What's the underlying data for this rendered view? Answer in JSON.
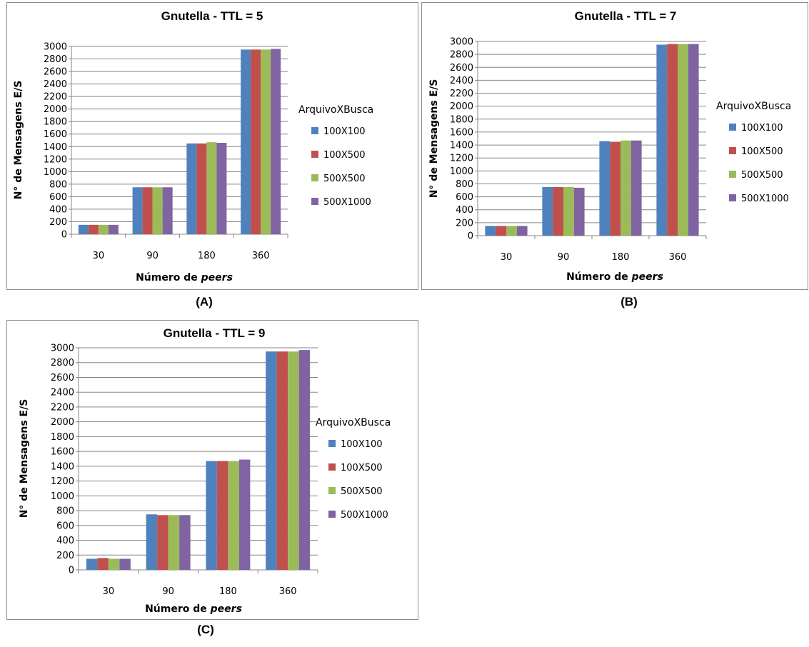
{
  "chart_data": [
    {
      "type": "bar",
      "title": "Gnutella - TTL = 5",
      "xlabel_prefix": "Número de ",
      "xlabel_emphasis": "peers",
      "ylabel": "N° de Mensagens E/S",
      "ylim": [
        0,
        3000
      ],
      "ytick_step": 200,
      "categories": [
        "30",
        "90",
        "180",
        "360"
      ],
      "legend_title": "ArquivoXBusca",
      "legend_position": "right",
      "grid": true,
      "series": [
        {
          "name": "100X100",
          "color": "#4f81bd",
          "values": [
            150,
            750,
            1450,
            2950
          ]
        },
        {
          "name": "100X500",
          "color": "#c0504d",
          "values": [
            150,
            750,
            1450,
            2950
          ]
        },
        {
          "name": "500X500",
          "color": "#9bbb59",
          "values": [
            150,
            750,
            1470,
            2950
          ]
        },
        {
          "name": "500X1000",
          "color": "#8064a2",
          "values": [
            150,
            750,
            1460,
            2960
          ]
        }
      ],
      "caption": "(A)"
    },
    {
      "type": "bar",
      "title": "Gnutella - TTL = 7",
      "xlabel_prefix": "Número de ",
      "xlabel_emphasis": "peers",
      "ylabel": "N° de Mensagens E/S",
      "ylim": [
        0,
        3000
      ],
      "ytick_step": 200,
      "categories": [
        "30",
        "90",
        "180",
        "360"
      ],
      "legend_title": "ArquivoXBusca",
      "legend_position": "right",
      "grid": true,
      "series": [
        {
          "name": "100X100",
          "color": "#4f81bd",
          "values": [
            150,
            750,
            1460,
            2950
          ]
        },
        {
          "name": "100X500",
          "color": "#c0504d",
          "values": [
            150,
            750,
            1450,
            2960
          ]
        },
        {
          "name": "500X500",
          "color": "#9bbb59",
          "values": [
            150,
            750,
            1470,
            2960
          ]
        },
        {
          "name": "500X1000",
          "color": "#8064a2",
          "values": [
            150,
            740,
            1470,
            2960
          ]
        }
      ],
      "caption": "(B)"
    },
    {
      "type": "bar",
      "title": "Gnutella - TTL = 9",
      "xlabel_prefix": "Número de ",
      "xlabel_emphasis": "peers",
      "ylabel": "N° de Mensagens E/S",
      "ylim": [
        0,
        3000
      ],
      "ytick_step": 200,
      "categories": [
        "30",
        "90",
        "180",
        "360"
      ],
      "legend_title": "ArquivoXBusca",
      "legend_position": "right",
      "grid": true,
      "series": [
        {
          "name": "100X100",
          "color": "#4f81bd",
          "values": [
            150,
            750,
            1470,
            2950
          ]
        },
        {
          "name": "100X500",
          "color": "#c0504d",
          "values": [
            160,
            740,
            1470,
            2950
          ]
        },
        {
          "name": "500X500",
          "color": "#9bbb59",
          "values": [
            150,
            740,
            1470,
            2950
          ]
        },
        {
          "name": "500X1000",
          "color": "#8064a2",
          "values": [
            150,
            740,
            1490,
            2970
          ]
        }
      ],
      "caption": "(C)"
    }
  ]
}
